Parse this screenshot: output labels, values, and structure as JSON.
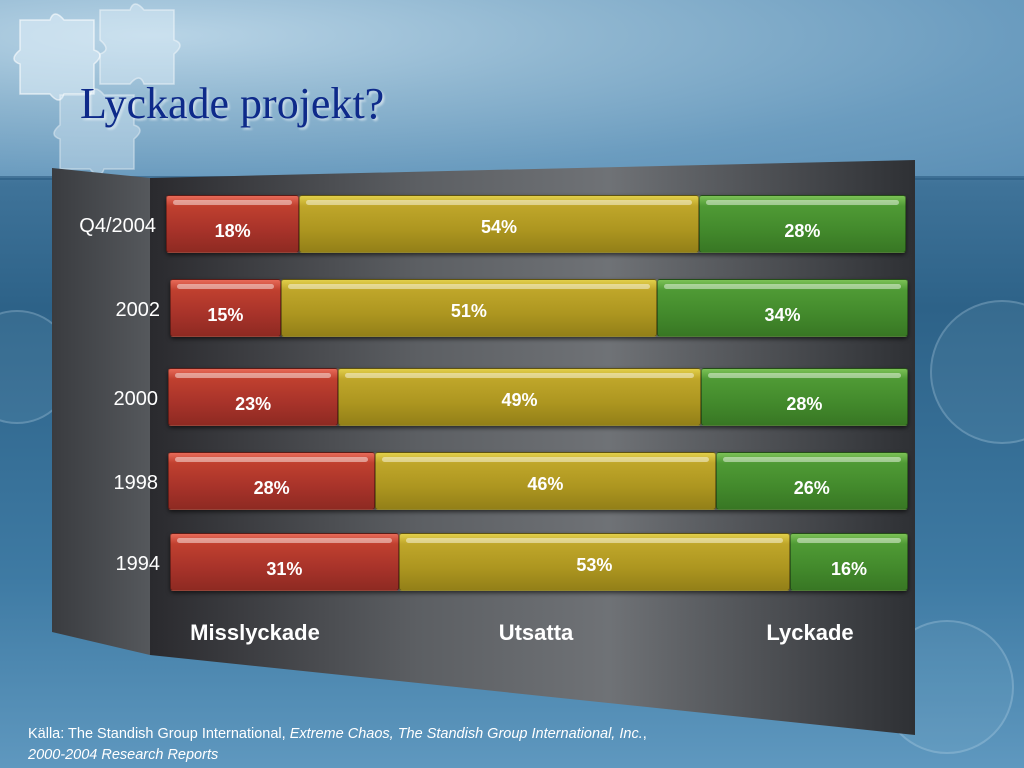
{
  "title": "Lyckade projekt?",
  "source": {
    "prefix": "Källa: The Standish Group International, ",
    "italic": "Extreme Chaos, The Standish Group International, Inc.",
    "middle": ", ",
    "italic2": "2000-2004 Research Reports"
  },
  "colors": {
    "fail": "#a8332a",
    "challenged": "#ad9620",
    "success": "#438a2c"
  },
  "chart_data": {
    "type": "bar",
    "stacked": true,
    "orientation": "horizontal",
    "categories": [
      "Q4/2004",
      "2002",
      "2000",
      "1998",
      "1994"
    ],
    "series": [
      {
        "name": "Misslyckade",
        "values": [
          18,
          15,
          23,
          28,
          31
        ],
        "labels": [
          "18%",
          "15%",
          "23%",
          "28%",
          "31%"
        ]
      },
      {
        "name": "Utsatta",
        "values": [
          54,
          51,
          49,
          46,
          53
        ],
        "labels": [
          "54%",
          "51%",
          "49%",
          "46%",
          "53%"
        ]
      },
      {
        "name": "Lyckade",
        "values": [
          28,
          34,
          28,
          26,
          16
        ],
        "labels": [
          "28%",
          "34%",
          "28%",
          "26%",
          "16%"
        ]
      }
    ],
    "unit": "%",
    "xlim": [
      0,
      100
    ],
    "legend_position": "bottom"
  }
}
